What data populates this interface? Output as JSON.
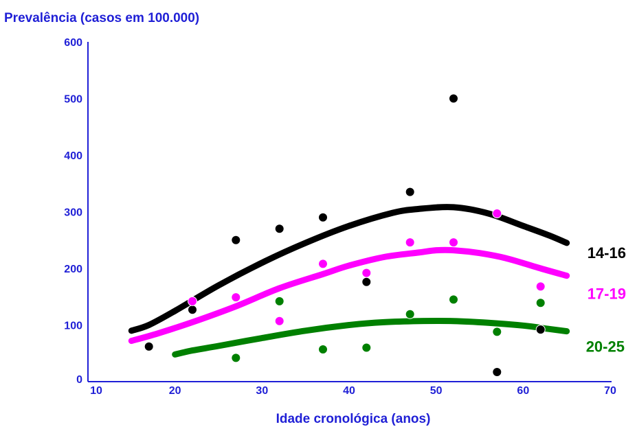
{
  "chart_data": {
    "type": "line",
    "title": "Prevalência (casos em 100.000)",
    "xlabel": "Idade cronológica (anos)",
    "ylabel": "",
    "xlim": [
      10,
      70
    ],
    "ylim": [
      0,
      600
    ],
    "x_ticks": [
      "10",
      "20",
      "30",
      "40",
      "50",
      "60",
      "70"
    ],
    "y_ticks": [
      "0",
      "100",
      "200",
      "300",
      "400",
      "500",
      "600"
    ],
    "grid": false,
    "legend": "right, labels next to line ends",
    "series": [
      {
        "name": "14-16",
        "color": "#000000",
        "curve": [
          [
            15,
            90
          ],
          [
            17,
            100
          ],
          [
            20,
            125
          ],
          [
            25,
            170
          ],
          [
            30,
            210
          ],
          [
            35,
            245
          ],
          [
            40,
            275
          ],
          [
            45,
            298
          ],
          [
            48,
            305
          ],
          [
            52,
            308
          ],
          [
            56,
            297
          ],
          [
            60,
            275
          ],
          [
            63,
            258
          ],
          [
            65,
            245
          ]
        ],
        "points": [
          [
            17,
            62
          ],
          [
            22,
            127
          ],
          [
            27,
            250
          ],
          [
            32,
            270
          ],
          [
            37,
            290
          ],
          [
            42,
            176
          ],
          [
            47,
            335
          ],
          [
            52,
            500
          ],
          [
            57,
            17
          ],
          [
            62,
            92
          ]
        ]
      },
      {
        "name": "17-19",
        "color": "#ff00ff",
        "curve": [
          [
            15,
            72
          ],
          [
            18,
            85
          ],
          [
            22,
            105
          ],
          [
            27,
            133
          ],
          [
            32,
            165
          ],
          [
            37,
            190
          ],
          [
            40,
            205
          ],
          [
            44,
            220
          ],
          [
            48,
            228
          ],
          [
            50,
            232
          ],
          [
            52,
            232
          ],
          [
            55,
            227
          ],
          [
            58,
            218
          ],
          [
            62,
            200
          ],
          [
            65,
            187
          ]
        ],
        "points": [
          [
            22,
            142
          ],
          [
            27,
            149
          ],
          [
            32,
            107
          ],
          [
            37,
            208
          ],
          [
            42,
            192
          ],
          [
            47,
            246
          ],
          [
            52,
            246
          ],
          [
            57,
            297
          ],
          [
            62,
            168
          ]
        ]
      },
      {
        "name": "20-25",
        "color": "#008000",
        "curve": [
          [
            20,
            48
          ],
          [
            22,
            55
          ],
          [
            25,
            63
          ],
          [
            30,
            77
          ],
          [
            35,
            90
          ],
          [
            40,
            100
          ],
          [
            44,
            105
          ],
          [
            48,
            107
          ],
          [
            52,
            107
          ],
          [
            56,
            104
          ],
          [
            60,
            99
          ],
          [
            63,
            93
          ],
          [
            65,
            89
          ]
        ],
        "points": [
          [
            27,
            42
          ],
          [
            32,
            142
          ],
          [
            37,
            57
          ],
          [
            42,
            60
          ],
          [
            47,
            119
          ],
          [
            52,
            145
          ],
          [
            57,
            88
          ],
          [
            62,
            139
          ]
        ]
      }
    ]
  }
}
